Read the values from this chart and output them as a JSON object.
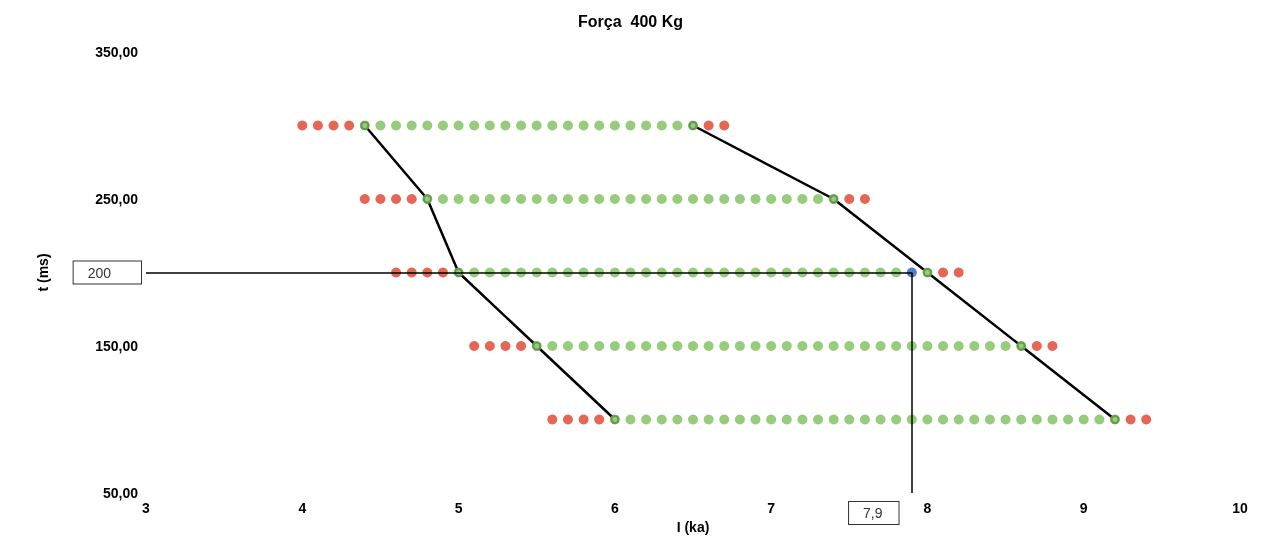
{
  "chart_data": {
    "type": "scatter",
    "title": "Força  400 Kg",
    "xlabel": "I (ka)",
    "ylabel": "t (ms)",
    "xlim": [
      3,
      10
    ],
    "xticks": [
      3,
      4,
      5,
      6,
      7,
      8,
      9,
      10
    ],
    "ylim": [
      50,
      350
    ],
    "yticks": [
      {
        "value": 50,
        "label": "50,00"
      },
      {
        "value": 150,
        "label": "150,00"
      },
      {
        "value": 250,
        "label": "250,00"
      },
      {
        "value": 350,
        "label": "350,00"
      }
    ],
    "marker": "circle",
    "ref_lines": [
      {
        "axis": "y",
        "value": 200,
        "label": "200",
        "color": "#000000"
      },
      {
        "axis": "x",
        "value": 7.9,
        "label": "7,9",
        "color": "#000000"
      }
    ],
    "series": [
      {
        "type": "scatter",
        "color": "#7cbf5a",
        "x": [
          4.4,
          4.5,
          4.6,
          4.7,
          4.8,
          4.9,
          5.0,
          5.1,
          5.2,
          5.3,
          5.4,
          5.5,
          5.6,
          5.7,
          5.8,
          5.9,
          6.0,
          6.1,
          6.2,
          6.3,
          6.4,
          6.5,
          4.8,
          4.9,
          5.0,
          5.1,
          5.2,
          5.3,
          5.4,
          5.5,
          5.6,
          5.7,
          5.8,
          5.9,
          6.0,
          6.1,
          6.2,
          6.3,
          6.4,
          6.5,
          6.6,
          6.7,
          6.8,
          6.9,
          7.0,
          7.1,
          7.2,
          7.3,
          7.4,
          5.0,
          5.1,
          5.2,
          5.3,
          5.4,
          5.5,
          5.6,
          5.7,
          5.8,
          5.9,
          6.0,
          6.1,
          6.2,
          6.3,
          6.4,
          6.5,
          6.6,
          6.7,
          6.8,
          6.9,
          7.0,
          7.1,
          7.2,
          7.3,
          7.4,
          7.5,
          7.6,
          7.7,
          7.8,
          8.0,
          5.5,
          5.6,
          5.7,
          5.8,
          5.9,
          6.0,
          6.1,
          6.2,
          6.3,
          6.4,
          6.5,
          6.6,
          6.7,
          6.8,
          6.9,
          7.0,
          7.1,
          7.2,
          7.3,
          7.4,
          7.5,
          7.6,
          7.7,
          7.8,
          7.9,
          8.0,
          8.1,
          8.2,
          8.3,
          8.4,
          8.5,
          8.6,
          6.0,
          6.1,
          6.2,
          6.3,
          6.4,
          6.5,
          6.6,
          6.7,
          6.8,
          6.9,
          7.0,
          7.1,
          7.2,
          7.3,
          7.4,
          7.5,
          7.6,
          7.7,
          7.8,
          7.9,
          8.0,
          8.1,
          8.2,
          8.3,
          8.4,
          8.5,
          8.6,
          8.7,
          8.8,
          8.9,
          9.0,
          9.1,
          9.2
        ],
        "values": [
          300,
          300,
          300,
          300,
          300,
          300,
          300,
          300,
          300,
          300,
          300,
          300,
          300,
          300,
          300,
          300,
          300,
          300,
          300,
          300,
          300,
          300,
          250,
          250,
          250,
          250,
          250,
          250,
          250,
          250,
          250,
          250,
          250,
          250,
          250,
          250,
          250,
          250,
          250,
          250,
          250,
          250,
          250,
          250,
          250,
          250,
          250,
          250,
          250,
          200,
          200,
          200,
          200,
          200,
          200,
          200,
          200,
          200,
          200,
          200,
          200,
          200,
          200,
          200,
          200,
          200,
          200,
          200,
          200,
          200,
          200,
          200,
          200,
          200,
          200,
          200,
          200,
          200,
          200,
          150,
          150,
          150,
          150,
          150,
          150,
          150,
          150,
          150,
          150,
          150,
          150,
          150,
          150,
          150,
          150,
          150,
          150,
          150,
          150,
          150,
          150,
          150,
          150,
          150,
          150,
          150,
          150,
          150,
          150,
          150,
          150,
          100,
          100,
          100,
          100,
          100,
          100,
          100,
          100,
          100,
          100,
          100,
          100,
          100,
          100,
          100,
          100,
          100,
          100,
          100,
          100,
          100,
          100,
          100,
          100,
          100,
          100,
          100,
          100,
          100,
          100,
          100,
          100,
          100
        ]
      },
      {
        "type": "scatter",
        "color": "#e0402a",
        "x": [
          4.0,
          4.1,
          4.2,
          4.3,
          6.6,
          6.7,
          4.4,
          4.5,
          4.6,
          4.7,
          7.5,
          7.6,
          4.6,
          4.7,
          4.8,
          4.9,
          8.1,
          8.2,
          5.1,
          5.2,
          5.3,
          5.4,
          8.7,
          8.8,
          5.6,
          5.7,
          5.8,
          5.9,
          9.3,
          9.4
        ],
        "values": [
          300,
          300,
          300,
          300,
          300,
          300,
          250,
          250,
          250,
          250,
          250,
          250,
          200,
          200,
          200,
          200,
          200,
          200,
          150,
          150,
          150,
          150,
          150,
          150,
          100,
          100,
          100,
          100,
          100,
          100
        ]
      },
      {
        "type": "scatter",
        "color": "#1f5fbf",
        "x": [
          7.9
        ],
        "values": [
          200
        ]
      },
      {
        "type": "line",
        "color": "#000000",
        "x": [
          4.4,
          4.8,
          5.0,
          5.5,
          6.0
        ],
        "values": [
          300,
          250,
          200,
          150,
          100
        ]
      },
      {
        "type": "line",
        "color": "#000000",
        "x": [
          6.5,
          7.4,
          8.0,
          8.6,
          9.2
        ],
        "values": [
          300,
          250,
          200,
          150,
          100
        ]
      }
    ]
  }
}
